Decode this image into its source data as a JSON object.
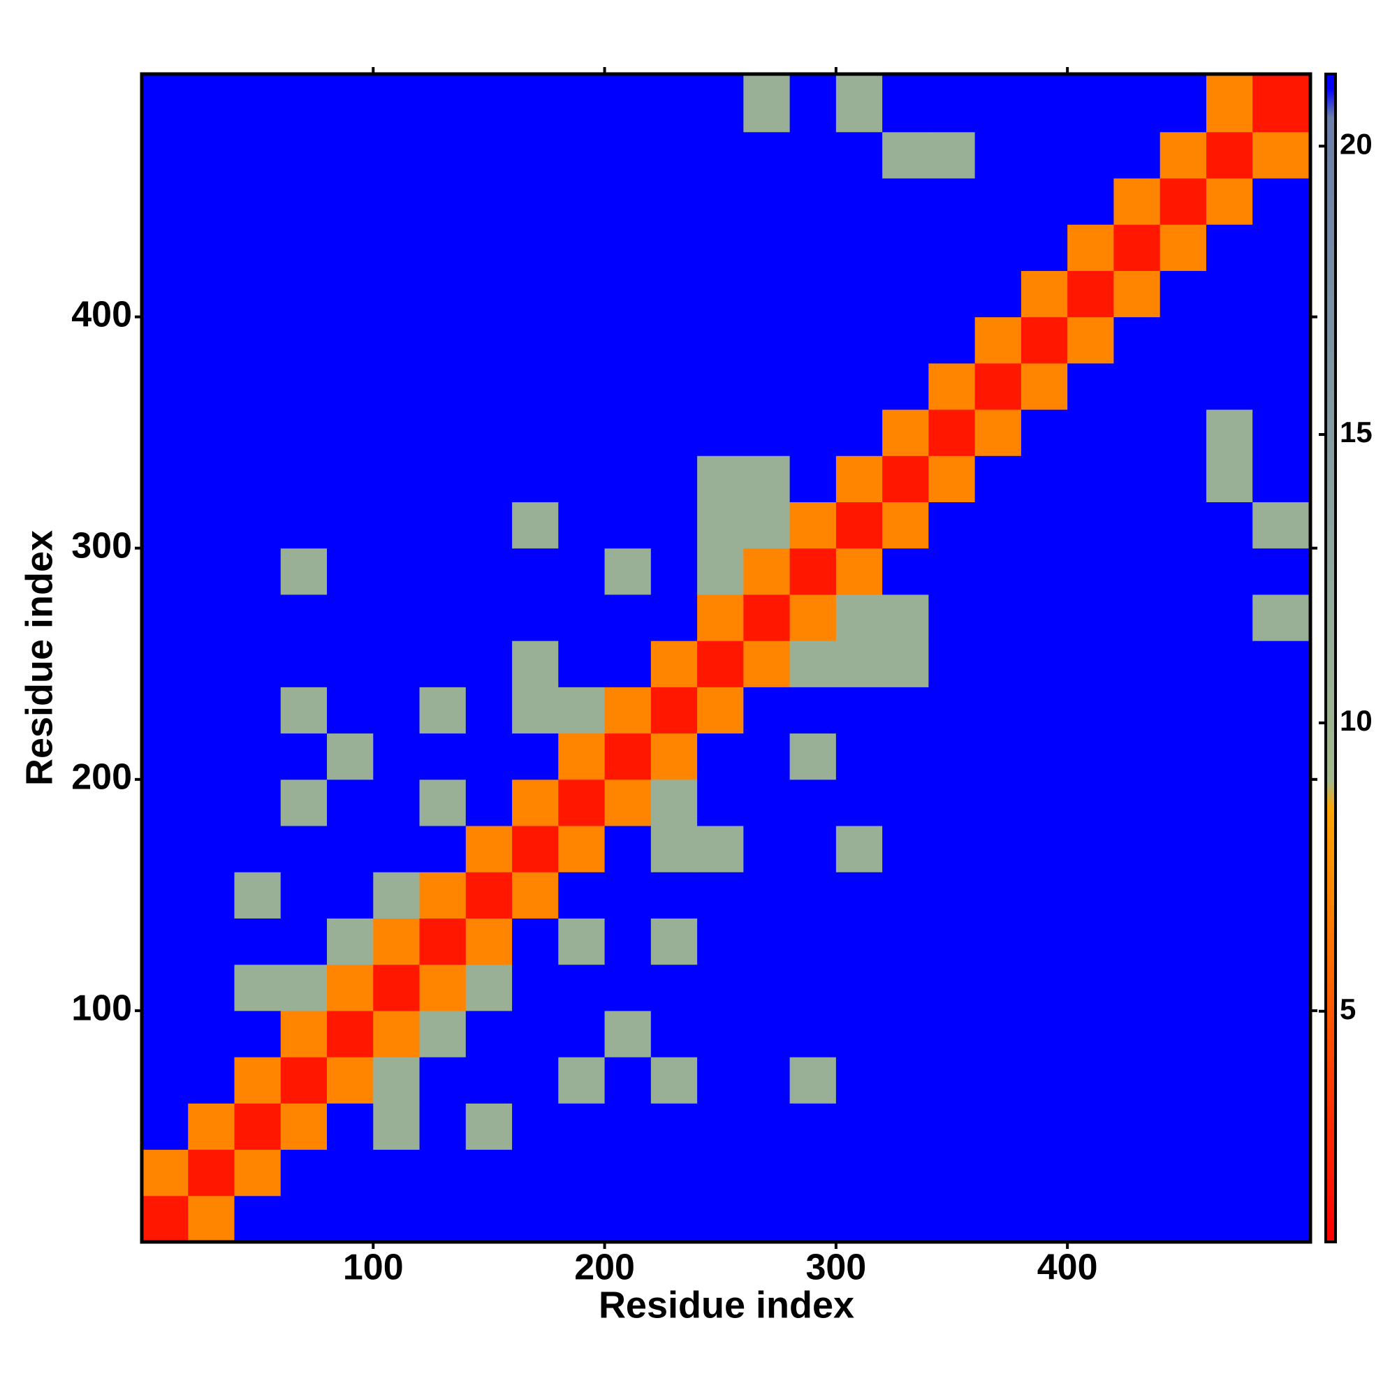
{
  "chart_data": {
    "type": "heatmap",
    "x_label": "Residue index",
    "y_label": "Residue index",
    "xbins": [
      0,
      20,
      40,
      60,
      80,
      100,
      120,
      140,
      160,
      180,
      200,
      220,
      240,
      260,
      280,
      300,
      320,
      340,
      360,
      380,
      400,
      420,
      440,
      460,
      480,
      505
    ],
    "ybins": [
      0,
      20,
      40,
      60,
      80,
      100,
      120,
      140,
      160,
      180,
      200,
      220,
      240,
      260,
      280,
      300,
      320,
      340,
      360,
      380,
      400,
      420,
      440,
      460,
      480,
      505
    ],
    "xlim": [
      0,
      505
    ],
    "ylim": [
      0,
      505
    ],
    "xticks": [
      100,
      200,
      300,
      400
    ],
    "yticks": [
      100,
      200,
      300,
      400
    ],
    "zlim": [
      1,
      21.25
    ],
    "colorbar_ticks": [
      5,
      10,
      15,
      20
    ],
    "colorscale": [
      {
        "value": 1,
        "color": "#ff0000"
      },
      {
        "value": 5,
        "color": "#ff5a00"
      },
      {
        "value": 8.5,
        "color": "#ffa500"
      },
      {
        "value": 9,
        "color": "#a3b98c"
      },
      {
        "value": 13,
        "color": "#8ea79f"
      },
      {
        "value": 20.5,
        "color": "#6b7fa8"
      },
      {
        "value": 21,
        "color": "#0000ff"
      }
    ],
    "z": [
      [
        2,
        7,
        21,
        21,
        21,
        21,
        21,
        21,
        21,
        21,
        21,
        21,
        21,
        21,
        21,
        21,
        21,
        21,
        21,
        21,
        21,
        21,
        21,
        21,
        21
      ],
      [
        7,
        2,
        7,
        21,
        21,
        21,
        21,
        21,
        21,
        21,
        21,
        21,
        21,
        21,
        21,
        21,
        21,
        21,
        21,
        21,
        21,
        21,
        21,
        21,
        21
      ],
      [
        21,
        7,
        2,
        7,
        21,
        11,
        21,
        11,
        21,
        21,
        21,
        21,
        21,
        21,
        21,
        21,
        21,
        21,
        21,
        21,
        21,
        21,
        21,
        21,
        21
      ],
      [
        21,
        21,
        7,
        2,
        7,
        11,
        21,
        21,
        21,
        11,
        21,
        11,
        21,
        21,
        11,
        21,
        21,
        21,
        21,
        21,
        21,
        21,
        21,
        21,
        21
      ],
      [
        21,
        21,
        21,
        7,
        2,
        7,
        11,
        21,
        21,
        21,
        11,
        21,
        21,
        21,
        21,
        21,
        21,
        21,
        21,
        21,
        21,
        21,
        21,
        21,
        21
      ],
      [
        21,
        21,
        11,
        11,
        7,
        2,
        7,
        11,
        21,
        21,
        21,
        21,
        21,
        21,
        21,
        21,
        21,
        21,
        21,
        21,
        21,
        21,
        21,
        21,
        21
      ],
      [
        21,
        21,
        21,
        21,
        11,
        7,
        2,
        7,
        21,
        11,
        21,
        11,
        21,
        21,
        21,
        21,
        21,
        21,
        21,
        21,
        21,
        21,
        21,
        21,
        21
      ],
      [
        21,
        21,
        11,
        21,
        21,
        11,
        7,
        2,
        7,
        21,
        21,
        21,
        21,
        21,
        21,
        21,
        21,
        21,
        21,
        21,
        21,
        21,
        21,
        21,
        21
      ],
      [
        21,
        21,
        21,
        21,
        21,
        21,
        21,
        7,
        2,
        7,
        21,
        11,
        11,
        21,
        21,
        11,
        21,
        21,
        21,
        21,
        21,
        21,
        21,
        21,
        21
      ],
      [
        21,
        21,
        21,
        11,
        21,
        21,
        11,
        21,
        7,
        2,
        7,
        11,
        21,
        21,
        21,
        21,
        21,
        21,
        21,
        21,
        21,
        21,
        21,
        21,
        21
      ],
      [
        21,
        21,
        21,
        21,
        11,
        21,
        21,
        21,
        21,
        7,
        2,
        7,
        21,
        21,
        11,
        21,
        21,
        21,
        21,
        21,
        21,
        21,
        21,
        21,
        21
      ],
      [
        21,
        21,
        21,
        11,
        21,
        21,
        11,
        21,
        11,
        11,
        7,
        2,
        7,
        21,
        21,
        21,
        21,
        21,
        21,
        21,
        21,
        21,
        21,
        21,
        21
      ],
      [
        21,
        21,
        21,
        21,
        21,
        21,
        21,
        21,
        11,
        21,
        21,
        7,
        2,
        7,
        11,
        11,
        11,
        21,
        21,
        21,
        21,
        21,
        21,
        21,
        21
      ],
      [
        21,
        21,
        21,
        21,
        21,
        21,
        21,
        21,
        21,
        21,
        21,
        21,
        7,
        2,
        7,
        11,
        11,
        21,
        21,
        21,
        21,
        21,
        21,
        21,
        11
      ],
      [
        21,
        21,
        21,
        11,
        21,
        21,
        21,
        21,
        21,
        21,
        11,
        21,
        11,
        7,
        2,
        7,
        21,
        21,
        21,
        21,
        21,
        21,
        21,
        21,
        21
      ],
      [
        21,
        21,
        21,
        21,
        21,
        21,
        21,
        21,
        11,
        21,
        21,
        21,
        11,
        11,
        7,
        2,
        7,
        21,
        21,
        21,
        21,
        21,
        21,
        21,
        11
      ],
      [
        21,
        21,
        21,
        21,
        21,
        21,
        21,
        21,
        21,
        21,
        21,
        21,
        11,
        11,
        21,
        7,
        2,
        7,
        21,
        21,
        21,
        21,
        21,
        11,
        21
      ],
      [
        21,
        21,
        21,
        21,
        21,
        21,
        21,
        21,
        21,
        21,
        21,
        21,
        21,
        21,
        21,
        21,
        7,
        2,
        7,
        21,
        21,
        21,
        21,
        11,
        21
      ],
      [
        21,
        21,
        21,
        21,
        21,
        21,
        21,
        21,
        21,
        21,
        21,
        21,
        21,
        21,
        21,
        21,
        21,
        7,
        2,
        7,
        21,
        21,
        21,
        21,
        21
      ],
      [
        21,
        21,
        21,
        21,
        21,
        21,
        21,
        21,
        21,
        21,
        21,
        21,
        21,
        21,
        21,
        21,
        21,
        21,
        7,
        2,
        7,
        21,
        21,
        21,
        21
      ],
      [
        21,
        21,
        21,
        21,
        21,
        21,
        21,
        21,
        21,
        21,
        21,
        21,
        21,
        21,
        21,
        21,
        21,
        21,
        21,
        7,
        2,
        7,
        21,
        21,
        21
      ],
      [
        21,
        21,
        21,
        21,
        21,
        21,
        21,
        21,
        21,
        21,
        21,
        21,
        21,
        21,
        21,
        21,
        21,
        21,
        21,
        21,
        7,
        2,
        7,
        21,
        21
      ],
      [
        21,
        21,
        21,
        21,
        21,
        21,
        21,
        21,
        21,
        21,
        21,
        21,
        21,
        21,
        21,
        21,
        21,
        21,
        21,
        21,
        21,
        7,
        2,
        7,
        21
      ],
      [
        21,
        21,
        21,
        21,
        21,
        21,
        21,
        21,
        21,
        21,
        21,
        21,
        21,
        21,
        21,
        21,
        11,
        11,
        21,
        21,
        21,
        21,
        7,
        2,
        7
      ],
      [
        21,
        21,
        21,
        21,
        21,
        21,
        21,
        21,
        21,
        21,
        21,
        21,
        21,
        11,
        21,
        11,
        21,
        21,
        21,
        21,
        21,
        21,
        21,
        7,
        2
      ]
    ]
  }
}
